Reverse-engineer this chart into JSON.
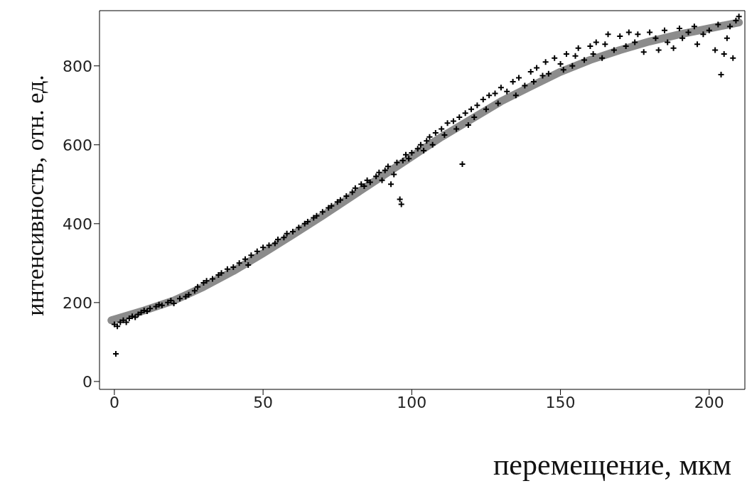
{
  "chart_data": {
    "type": "scatter",
    "xlabel": "перемещение, мкм",
    "ylabel": "интенсивность, отн. ед.",
    "xlim": [
      -5,
      212
    ],
    "xticks": [
      0,
      50,
      100,
      150,
      200
    ],
    "ylim": [
      -20,
      940
    ],
    "yticks": [
      0,
      200,
      400,
      600,
      800
    ],
    "legend": false,
    "series": [
      {
        "color": "#000000",
        "marker": "cross",
        "x": [
          0.5,
          0,
          1,
          2,
          3,
          4,
          5,
          6,
          7,
          8,
          9,
          10,
          11,
          12,
          14,
          15,
          16,
          18,
          19,
          20,
          22,
          24,
          25,
          27,
          28,
          30,
          31,
          33,
          35,
          36,
          38,
          40,
          42,
          44,
          45,
          46,
          48,
          50,
          52,
          54,
          55,
          57,
          58,
          60,
          62,
          64,
          65,
          67,
          68,
          70,
          72,
          73,
          75,
          76,
          78,
          80,
          81,
          83,
          84,
          85,
          86,
          88,
          89,
          90,
          91,
          92,
          93,
          94,
          95,
          96,
          96.5,
          97,
          98,
          99,
          100,
          102,
          103,
          104,
          105,
          106,
          107,
          108,
          110,
          111,
          112,
          114,
          115,
          116,
          117,
          118,
          119,
          120,
          121,
          122,
          124,
          125,
          126,
          128,
          129,
          130,
          132,
          134,
          135,
          136,
          138,
          140,
          141,
          142,
          144,
          145,
          146,
          148,
          150,
          151,
          152,
          154,
          155,
          156,
          158,
          160,
          161,
          162,
          164,
          165,
          166,
          168,
          170,
          172,
          173,
          175,
          176,
          178,
          180,
          182,
          183,
          185,
          186,
          188,
          190,
          191,
          193,
          195,
          196,
          198,
          200,
          202,
          203,
          204,
          205,
          206,
          207,
          208,
          209,
          210
        ],
        "values": [
          70,
          145,
          140,
          150,
          155,
          150,
          160,
          165,
          163,
          170,
          175,
          180,
          178,
          185,
          190,
          195,
          193,
          200,
          205,
          198,
          210,
          215,
          220,
          230,
          240,
          250,
          255,
          260,
          270,
          275,
          285,
          290,
          300,
          310,
          295,
          320,
          330,
          340,
          345,
          350,
          360,
          365,
          375,
          380,
          390,
          400,
          405,
          415,
          420,
          430,
          440,
          445,
          455,
          460,
          470,
          480,
          490,
          500,
          495,
          510,
          505,
          520,
          530,
          510,
          535,
          545,
          500,
          525,
          555,
          462,
          449,
          560,
          575,
          565,
          580,
          590,
          600,
          585,
          610,
          620,
          600,
          630,
          640,
          625,
          655,
          660,
          640,
          670,
          551,
          680,
          650,
          690,
          670,
          700,
          715,
          690,
          725,
          730,
          705,
          745,
          735,
          760,
          725,
          770,
          750,
          785,
          760,
          795,
          775,
          810,
          780,
          820,
          805,
          790,
          830,
          800,
          825,
          845,
          815,
          850,
          830,
          860,
          820,
          855,
          880,
          840,
          875,
          850,
          885,
          860,
          880,
          835,
          885,
          870,
          840,
          890,
          860,
          845,
          895,
          870,
          885,
          900,
          855,
          880,
          890,
          840,
          905,
          778,
          830,
          870,
          900,
          820,
          915,
          925
        ]
      },
      {
        "type": "line",
        "color": "#8c8c8c",
        "marker": "none",
        "x": [
          -1,
          10,
          20,
          30,
          40,
          50,
          60,
          70,
          80,
          90,
          100,
          110,
          120,
          130,
          140,
          150,
          160,
          170,
          180,
          190,
          200,
          210
        ],
        "values": [
          155,
          180,
          205,
          240,
          280,
          325,
          372,
          420,
          470,
          520,
          570,
          620,
          665,
          710,
          748,
          785,
          815,
          840,
          862,
          880,
          895,
          910
        ]
      }
    ]
  }
}
